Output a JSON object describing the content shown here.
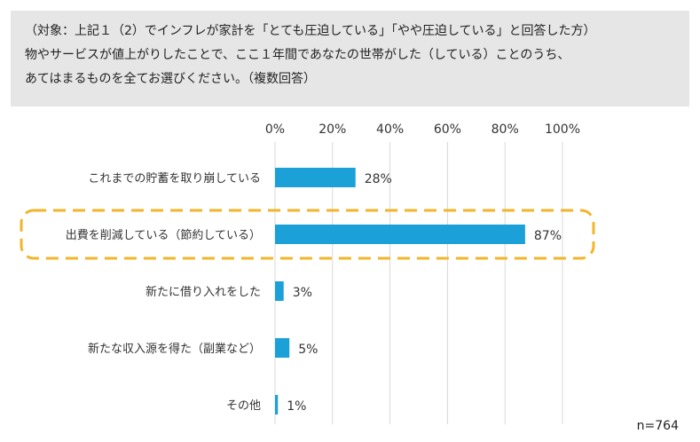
{
  "question": {
    "lines": [
      "（対象：上記１（2）でインフレが家計を「とても圧迫している」「やや圧迫している」と回答した方）",
      "物やサービスが値上がりしたことで、ここ１年間であなたの世帯がした（している）ことのうち、",
      "あてはまるものを全てお選びください。（複数回答）"
    ]
  },
  "chart_data": {
    "type": "bar",
    "orientation": "horizontal",
    "title": "",
    "categories": [
      "これまでの貯蓄を取り崩している",
      "出費を削減している（節約している）",
      "新たに借り入れをした",
      "新たな収入源を得た（副業など）",
      "その他"
    ],
    "values": [
      28,
      87,
      3,
      5,
      1
    ],
    "value_labels": [
      "28%",
      "87%",
      "3%",
      "5%",
      "1%"
    ],
    "xlim": [
      0,
      100
    ],
    "ticks": [
      0,
      20,
      40,
      60,
      80,
      100
    ],
    "tick_labels": [
      "0%",
      "20%",
      "40%",
      "60%",
      "80%",
      "100%"
    ],
    "highlighted_index": 1,
    "grid": true,
    "xlabel": "",
    "ylabel": "",
    "bar_color": "#1ba1d8",
    "highlight_color": "#f2b52b",
    "grid_color": "#d9d9d9"
  },
  "note": "n=764"
}
